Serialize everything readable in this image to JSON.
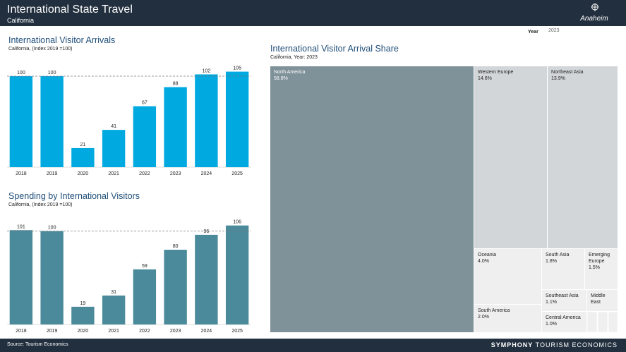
{
  "header": {
    "title": "International State Travel",
    "subtitle": "California",
    "logo_text": "Anaheim"
  },
  "filter": {
    "label": "Year",
    "value": "2023"
  },
  "colors": {
    "header_bg": "#222f3e",
    "arrivals_bar": "#00a9e0",
    "spending_bar": "#4a8a9b",
    "title_blue": "#1f4e79",
    "treemap_main": "#7f9199",
    "treemap_mid": "#d2d6d8",
    "treemap_light": "#efefef"
  },
  "chart_data": [
    {
      "id": "arrivals",
      "type": "bar",
      "title": "International Visitor Arrivals",
      "subtitle": "California, (Index 2019 =100)",
      "categories": [
        "2018",
        "2019",
        "2020",
        "2021",
        "2022",
        "2023",
        "2024",
        "2025"
      ],
      "values": [
        100,
        100,
        21,
        41,
        67,
        88,
        102,
        105
      ],
      "labels": [
        "100",
        "100",
        "21",
        "41",
        "67",
        "88",
        "102",
        "105"
      ],
      "reference_line": 100,
      "ylim": [
        0,
        107
      ]
    },
    {
      "id": "spending",
      "type": "bar",
      "title": "Spending by International Visitors",
      "subtitle": "California, (Index 2019 =100)",
      "categories": [
        "2018",
        "2019",
        "2020",
        "2021",
        "2022",
        "2023",
        "2024",
        "2025"
      ],
      "values": [
        101,
        100,
        19,
        31,
        59,
        80,
        96,
        106
      ],
      "labels": [
        "101",
        "100",
        "19",
        "31",
        "59",
        "80",
        "96",
        "106"
      ],
      "reference_line": 100,
      "ylim": [
        0,
        108
      ]
    },
    {
      "id": "share",
      "type": "treemap",
      "title": "International Visitor Arrival Share",
      "subtitle": "California, Year: 2023",
      "items": [
        {
          "name": "North America",
          "share": "58.8%",
          "value": 58.8
        },
        {
          "name": "Western Europe",
          "share": "14.6%",
          "value": 14.6
        },
        {
          "name": "Northeast Asia",
          "share": "13.9%",
          "value": 13.9
        },
        {
          "name": "Oceania",
          "share": "4.0%",
          "value": 4.0
        },
        {
          "name": "South America",
          "share": "2.0%",
          "value": 2.0
        },
        {
          "name": "South Asia",
          "share": "1.8%",
          "value": 1.8
        },
        {
          "name": "Emerging Europe",
          "share": "1.5%",
          "value": 1.5
        },
        {
          "name": "Southeast Asia",
          "share": "1.1%",
          "value": 1.1
        },
        {
          "name": "Middle East",
          "share": "",
          "value": 0.9
        },
        {
          "name": "Central America",
          "share": "1.0%",
          "value": 1.0
        }
      ]
    }
  ],
  "footer": {
    "source": "Source: Tourism Economics",
    "brand_bold": "SYMPHONY",
    "brand_light": "TOURISM ECONOMICS"
  }
}
